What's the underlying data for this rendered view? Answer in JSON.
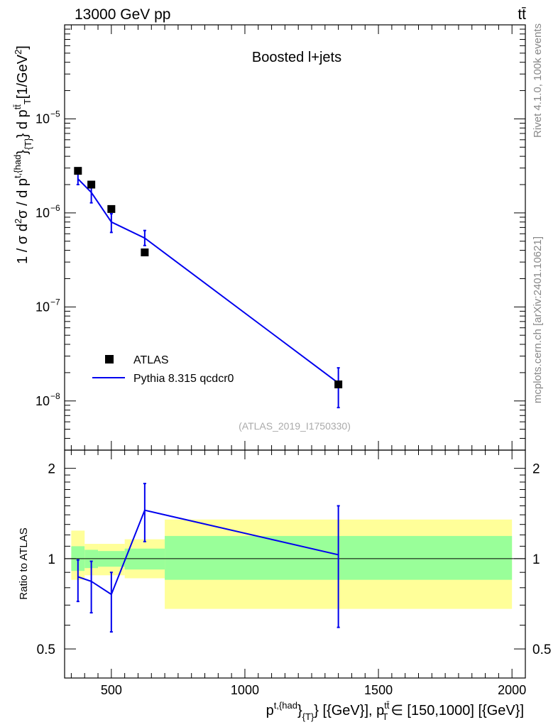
{
  "header": {
    "left": "13000 GeV pp",
    "right": "tt̄"
  },
  "side": {
    "rivet": "Rivet 4.1.0,  100k events",
    "mcplots": "mcplots.cern.ch [arXiv:2401.10621]"
  },
  "chart_data": {
    "type": "scatter",
    "title": "Boosted l+jets",
    "watermark": "(ATLAS_2019_I1750330)",
    "ylabel": "1 / σ d²σ / d p^{t,{had}}_{T} d p^{tt̄}_{T} [1/GeV²]",
    "ylabel_parts": {
      "a": "1 / σ d",
      "a_sup": "2",
      "b": "σ / d p",
      "b_sup": "t,{had",
      "b_sub": "}",
      "b_sub2": "{T}",
      "c": "} d p",
      "c_sup": "tt̄",
      "c_sub": "T",
      "d": "[1/GeV",
      "d_sup": "2",
      "e": "]"
    },
    "xlabel_parts": {
      "a": "p",
      "a_sup": "t,{had",
      "a_sub": "}",
      "a_sub2": "{T}",
      "b": "} [{GeV}], p",
      "b_sup": "tt̄",
      "b_sub": "T",
      "c": "∈ [150,1000] [{GeV}]"
    },
    "ratio_ylabel": "Ratio to ATLAS",
    "xlim": [
      325,
      2050
    ],
    "ylim": [
      3e-09,
      0.0001
    ],
    "ratio_ylim": [
      0.4,
      2.3
    ],
    "xticks": [
      500,
      1000,
      1500,
      2000
    ],
    "xtick_labels": [
      "500",
      "1000",
      "1500",
      "2000"
    ],
    "yticks_main": [
      1e-08,
      1e-07,
      1e-06,
      1e-05
    ],
    "ytick_labels_main": [
      {
        "base": "10",
        "exp": "−8"
      },
      {
        "base": "10",
        "exp": "−7"
      },
      {
        "base": "10",
        "exp": "−6"
      },
      {
        "base": "10",
        "exp": "−5"
      }
    ],
    "yticks_ratio": [
      0.5,
      1,
      2
    ],
    "ytick_labels_ratio": [
      "0.5",
      "1",
      "2"
    ],
    "legend": [
      {
        "name": "ATLAS",
        "marker": "square",
        "color": "#000000"
      },
      {
        "name": "Pythia 8.315 qcdcr0",
        "marker": "line",
        "color": "#0000ee"
      }
    ],
    "bins": [
      {
        "lo": 350,
        "hi": 400,
        "x": 375,
        "data": 2.8e-06,
        "mc": 2.3e-06,
        "mc_lo": 2e-06,
        "mc_hi": 2.6e-06,
        "ratio": 0.87,
        "ratio_lo": 0.72,
        "ratio_hi": 0.99,
        "band_y_lo": 0.85,
        "band_y_hi": 1.24,
        "band_g_lo": 0.91,
        "band_g_hi": 1.1
      },
      {
        "lo": 400,
        "hi": 450,
        "x": 425,
        "data": 2e-06,
        "mc": 1.65e-06,
        "mc_lo": 1.28e-06,
        "mc_hi": 1.95e-06,
        "ratio": 0.84,
        "ratio_lo": 0.66,
        "ratio_hi": 0.98,
        "band_y_lo": 0.88,
        "band_y_hi": 1.12,
        "band_g_lo": 0.93,
        "band_g_hi": 1.07
      },
      {
        "lo": 450,
        "hi": 550,
        "x": 500,
        "data": 1.1e-06,
        "mc": 8e-07,
        "mc_lo": 6.2e-07,
        "mc_hi": 9.8e-07,
        "ratio": 0.76,
        "ratio_lo": 0.57,
        "ratio_hi": 0.9,
        "band_y_lo": 0.88,
        "band_y_hi": 1.12,
        "band_g_lo": 0.94,
        "band_g_hi": 1.06
      },
      {
        "lo": 550,
        "hi": 700,
        "x": 625,
        "data": 3.8e-07,
        "mc": 5.4e-07,
        "mc_lo": 4.5e-07,
        "mc_hi": 6.5e-07,
        "ratio": 1.45,
        "ratio_lo": 1.14,
        "ratio_hi": 1.78,
        "band_y_lo": 0.86,
        "band_y_hi": 1.16,
        "band_g_lo": 0.92,
        "band_g_hi": 1.08
      },
      {
        "lo": 700,
        "hi": 2000,
        "x": 1350,
        "data": 1.5e-08,
        "mc": 1.55e-08,
        "mc_lo": 8.5e-09,
        "mc_hi": 2.25e-08,
        "ratio": 1.03,
        "ratio_lo": 0.59,
        "ratio_hi": 1.5,
        "band_y_lo": 0.68,
        "band_y_hi": 1.35,
        "band_g_lo": 0.85,
        "band_g_hi": 1.19
      }
    ],
    "colors": {
      "mc": "#0000ee",
      "data": "#000000",
      "band_yellow": "#ffff99",
      "band_green": "#99ff99"
    }
  }
}
